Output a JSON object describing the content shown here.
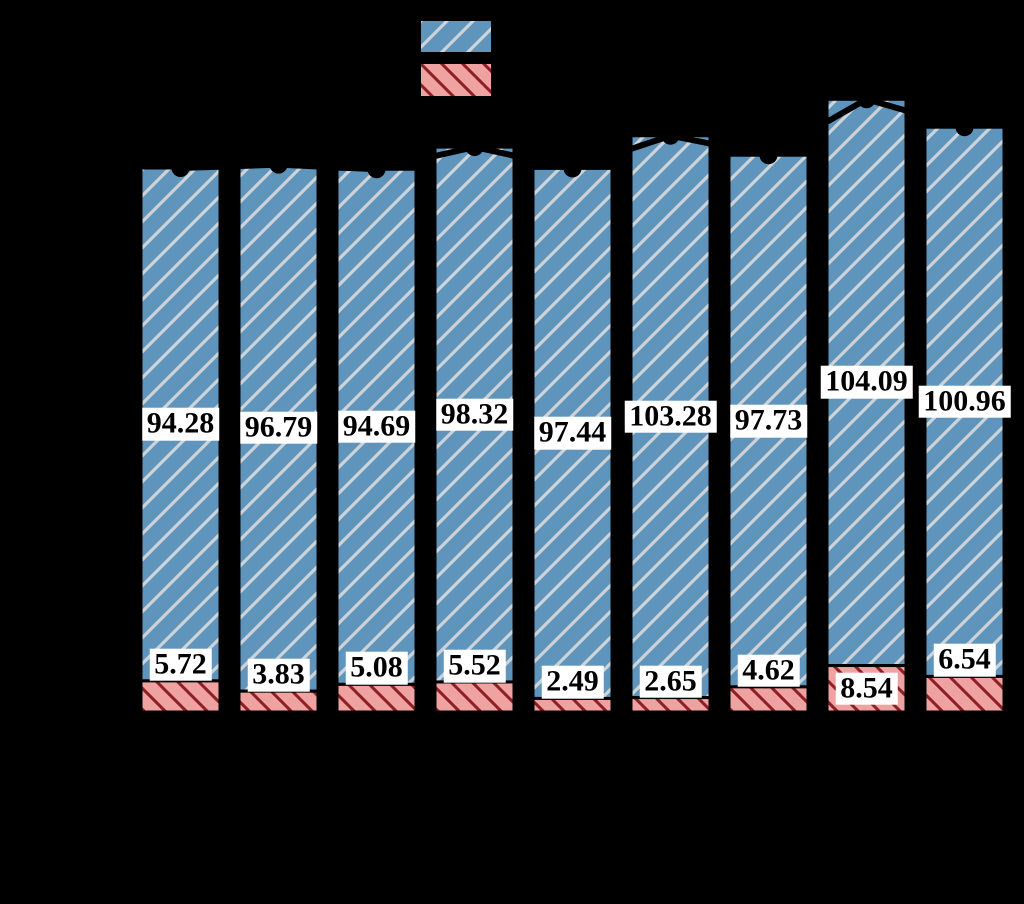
{
  "figure": {
    "background_color": "#000000",
    "legend": {
      "position": "top-center",
      "labels_visible": false,
      "swatches": [
        {
          "id": "swatch-blue-hatched",
          "fill": "#5f94bc",
          "hatch": "/",
          "hatch_color": "#ccd3d9"
        },
        {
          "id": "swatch-red-hatched",
          "fill": "#efa2a2",
          "hatch": "\\",
          "hatch_color": "#8e1f24"
        }
      ]
    }
  },
  "chart_data": {
    "type": "bar",
    "subtype": "stacked",
    "orientation": "vertical",
    "n_bars": 9,
    "axes_text_visible": false,
    "grid": false,
    "series": [
      {
        "id": "bottom-red-segment",
        "fill": "#efa2a2",
        "hatch": "\\",
        "hatch_color": "#8e1f24",
        "edge_color": "#000000",
        "values": [
          5.72,
          3.83,
          5.08,
          5.52,
          2.49,
          2.65,
          4.62,
          8.54,
          6.54
        ]
      },
      {
        "id": "top-blue-segment",
        "fill": "#5f94bc",
        "hatch": "/",
        "hatch_color": "#ccd3d9",
        "edge_color": "#000000",
        "values": [
          94.28,
          96.79,
          94.69,
          98.32,
          97.44,
          103.28,
          97.73,
          104.09,
          100.96
        ]
      }
    ],
    "stack_totals": [
      100.0,
      100.62,
      99.77,
      103.84,
      99.93,
      105.93,
      102.35,
      112.63,
      107.5
    ],
    "total_line": {
      "color": "#000000",
      "marker": "circle",
      "marker_color": "#000000"
    },
    "bar_labels": {
      "bg": "#ffffff",
      "color": "#000000",
      "decimals": 2
    }
  }
}
